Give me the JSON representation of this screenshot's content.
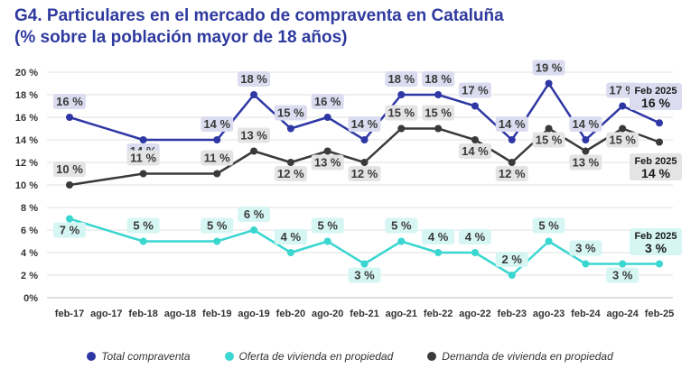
{
  "title_line1": "G4. Particulares en el mercado de compraventa en Cataluña",
  "title_line2": "(% sobre la población mayor de 18 años)",
  "chart_data": {
    "type": "line",
    "categories": [
      "feb-17",
      "ago-17",
      "feb-18",
      "ago-18",
      "feb-19",
      "ago-19",
      "feb-20",
      "ago-20",
      "feb-21",
      "ago-21",
      "feb-22",
      "ago-22",
      "feb-23",
      "ago-23",
      "feb-24",
      "ago-24",
      "feb-25"
    ],
    "x": [
      "feb-17",
      "feb-18",
      "feb-19",
      "ago-19",
      "feb-20",
      "ago-20",
      "feb-21",
      "ago-21",
      "feb-22",
      "ago-22",
      "feb-23",
      "ago-23",
      "feb-24",
      "ago-24",
      "feb-25"
    ],
    "ylim": [
      0,
      20
    ],
    "yticks": [
      "0%",
      "2 %",
      "4 %",
      "6 %",
      "8 %",
      "10 %",
      "12 %",
      "14 %",
      "16 %",
      "18 %",
      "20 %"
    ],
    "grid": true,
    "legend_position": "bottom",
    "series": [
      {
        "name": "Total compraventa",
        "color": "#2e37a4",
        "label_bg": "#dcdcf0",
        "values": [
          16,
          14,
          14,
          18,
          15,
          16,
          14,
          18,
          18,
          17,
          14,
          19,
          14,
          17,
          15.5
        ],
        "labels": [
          "16 %",
          "14 %",
          "14 %",
          "18 %",
          "15 %",
          "16 %",
          "14 %",
          "18 %",
          "18 %",
          "17 %",
          "14 %",
          "19 %",
          "14 %",
          "17 %",
          ""
        ],
        "end_label_title": "Feb 2025",
        "end_label_value": "16 %"
      },
      {
        "name": "Oferta de vivienda en propiedad",
        "color": "#3ad6d0",
        "label_bg": "#d6f6f4",
        "values": [
          7,
          5,
          5,
          6,
          4,
          5,
          3,
          5,
          4,
          4,
          2,
          5,
          3,
          3,
          3
        ],
        "labels": [
          "7 %",
          "5 %",
          "5 %",
          "6 %",
          "4 %",
          "5 %",
          "3 %",
          "5 %",
          "4 %",
          "4 %",
          "2 %",
          "5 %",
          "3 %",
          "3 %",
          ""
        ],
        "end_label_title": "Feb 2025",
        "end_label_value": "3 %"
      },
      {
        "name": "Demanda de vivienda en propiedad",
        "color": "#3a3a3a",
        "label_bg": "#e4e4e4",
        "values": [
          10,
          11,
          11,
          13,
          12,
          13,
          12,
          15,
          15,
          14,
          12,
          15,
          13,
          15,
          13.8
        ],
        "labels": [
          "10 %",
          "11 %",
          "11 %",
          "13 %",
          "12 %",
          "13 %",
          "12 %",
          "15 %",
          "15 %",
          "14 %",
          "12 %",
          "15 %",
          "13 %",
          "15 %",
          ""
        ],
        "end_label_title": "Feb 2025",
        "end_label_value": "14 %"
      }
    ]
  }
}
